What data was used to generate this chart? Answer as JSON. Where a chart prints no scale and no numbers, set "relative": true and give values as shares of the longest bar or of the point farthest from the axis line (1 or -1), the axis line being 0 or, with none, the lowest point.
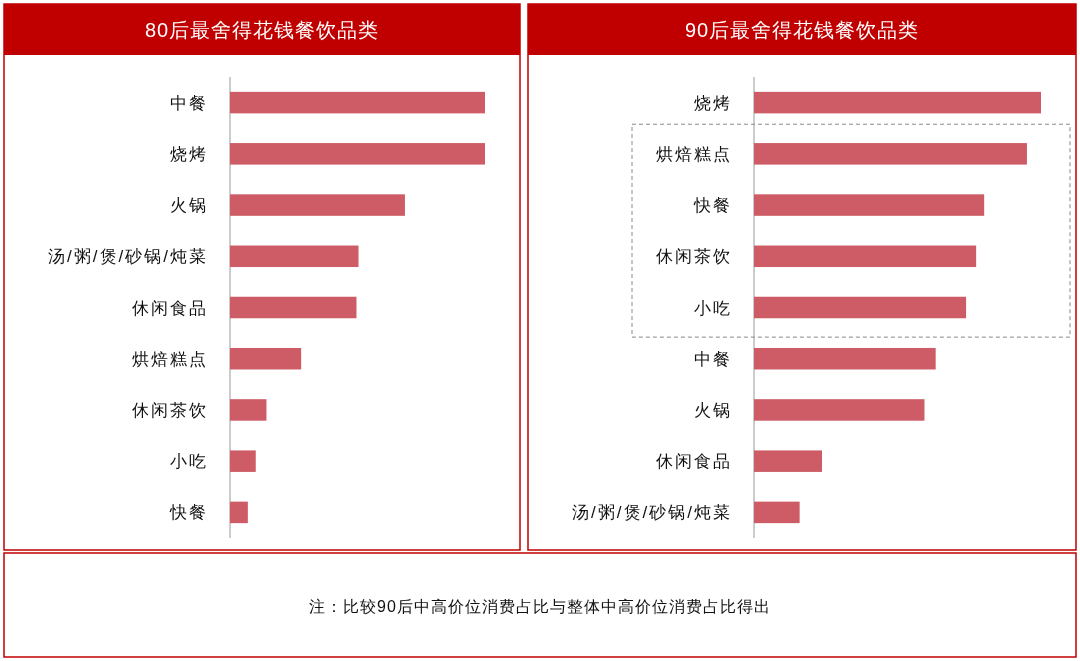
{
  "chart_data": [
    {
      "type": "bar",
      "orientation": "horizontal",
      "relative": true,
      "title": "80后最舍得花钱餐饮品类",
      "color": "#cd5c66",
      "categories": [
        "中餐",
        "烧烤",
        "火锅",
        "汤/粥/煲/砂锅/炖菜",
        "休闲食品",
        "烘焙糕点",
        "休闲茶饮",
        "小吃",
        "快餐"
      ],
      "values": [
        1,
        1,
        0.686,
        0.504,
        0.496,
        0.279,
        0.143,
        0.101,
        0.07
      ]
    },
    {
      "type": "bar",
      "orientation": "horizontal",
      "relative": true,
      "title": "90后最舍得花钱餐饮品类",
      "color": "#cd5c66",
      "categories": [
        "烧烤",
        "烘焙糕点",
        "快餐",
        "休闲茶饮",
        "小吃",
        "中餐",
        "火锅",
        "休闲食品",
        "汤/粥/煲/砂锅/炖菜"
      ],
      "values": [
        1,
        0.951,
        0.802,
        0.774,
        0.739,
        0.633,
        0.594,
        0.237,
        0.159
      ],
      "annotations": [
        "注：比较90后中高价位消费占比与整体中高价位消费占比得出"
      ]
    }
  ]
}
